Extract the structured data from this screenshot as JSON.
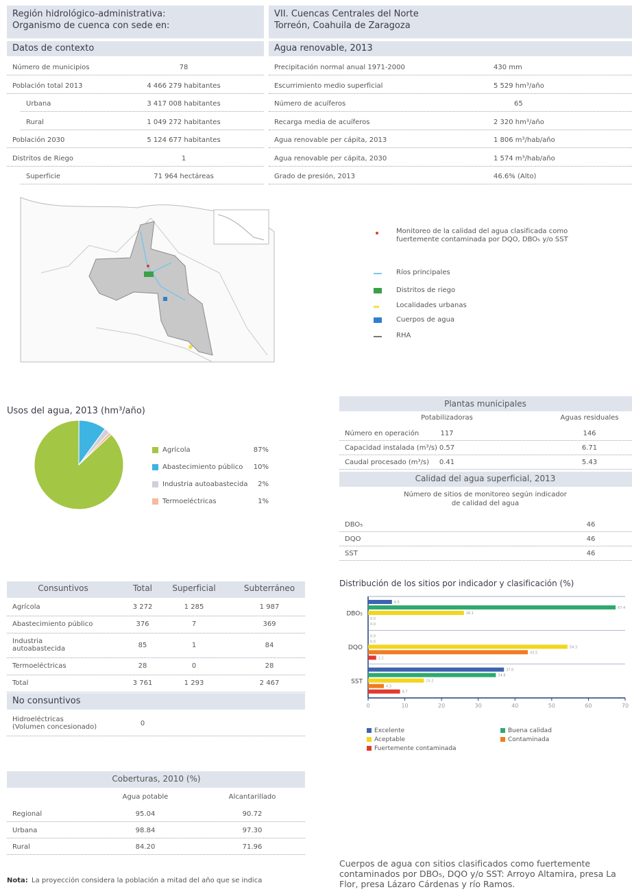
{
  "header": {
    "labels": [
      "Región hidrológico-administrativa:",
      "Organismo de cuenca con sede en:"
    ],
    "values": [
      "VII. Cuencas Centrales del Norte",
      "Torreón, Coahuila de Zaragoza"
    ]
  },
  "context": {
    "title": "Datos de contexto",
    "rows": [
      [
        "Número de municipios",
        "78"
      ],
      [
        "Población total 2013",
        "4 466 279 habitantes"
      ],
      [
        "Urbana",
        "3 417 008 habitantes"
      ],
      [
        "Rural",
        "1 049 272 habitantes"
      ],
      [
        "Población 2030",
        "5 124 677 habitantes"
      ],
      [
        "Distritos de Riego",
        "1"
      ],
      [
        "Superficie",
        "71 964 hectáreas"
      ]
    ]
  },
  "renewable": {
    "title": "Agua renovable, 2013",
    "rows": [
      [
        "Precipitación normal anual 1971-2000",
        "430 mm"
      ],
      [
        "Escurrimiento medio superficial",
        "5 529 hm³/año"
      ],
      [
        "Número de acuíferos",
        "65"
      ],
      [
        "Recarga media de acuíferos",
        "2 320 hm³/año"
      ],
      [
        "Agua renovable per cápita, 2013",
        "1 806 m³/hab/año"
      ],
      [
        "Agua renovable per cápita, 2030",
        "1 574 m³/hab/año"
      ],
      [
        "Grado de presión, 2013",
        "46.6% (Alto)"
      ]
    ]
  },
  "map_legend": [
    "Monitoreo de la calidad del agua clasificada como fuertemente contaminada por DQO, DBO₅ y/o SST",
    "Ríos principales",
    "Distritos de riego",
    "Localidades urbanas",
    "Cuerpos de agua",
    "RHA"
  ],
  "chart_data": [
    {
      "type": "pie",
      "title": "Usos del agua, 2013 (hm³/año)",
      "categories": [
        "Agrícola",
        "Abastecimiento público",
        "Industria autoabastecida",
        "Termoeléctricas"
      ],
      "values": [
        87,
        10,
        2,
        1
      ],
      "value_labels": [
        "87%",
        "10%",
        "2%",
        "1%"
      ],
      "colors": [
        "#a3c644",
        "#3db4e2",
        "#cfd0dc",
        "#f7b9a0"
      ]
    },
    {
      "type": "hbar",
      "title": "Distribución de los sitios por indicador y clasificación (%)",
      "categories": [
        "DBO₅",
        "DQO",
        "SST"
      ],
      "series": [
        {
          "name": "Excelente",
          "color": "#3e64b0",
          "values": [
            6.5,
            0,
            37.0
          ],
          "value_labels": [
            "6.5",
            "0.0",
            "37.0"
          ]
        },
        {
          "name": "Buena calidad",
          "color": "#2eaa6e",
          "values": [
            67.4,
            0,
            34.8
          ],
          "value_labels": [
            "67.4",
            "0.0",
            "34.8"
          ]
        },
        {
          "name": "Aceptable",
          "color": "#f2d51e",
          "values": [
            26.1,
            54.3,
            15.2
          ],
          "value_labels": [
            "26.1",
            "54.3",
            "15.2"
          ]
        },
        {
          "name": "Contaminada",
          "color": "#f07c22",
          "values": [
            0,
            43.5,
            4.3
          ],
          "value_labels": [
            "0.0",
            "43.5",
            "4.3"
          ]
        },
        {
          "name": "Fuertemente contaminada",
          "color": "#e03a2f",
          "values": [
            0,
            2.2,
            8.7
          ],
          "value_labels": [
            "0.0",
            "2.2",
            "8.7"
          ]
        }
      ],
      "xlim": [
        0,
        70
      ],
      "xticks": [
        0,
        10,
        20,
        30,
        40,
        50,
        60,
        70
      ]
    }
  ],
  "plants": {
    "title": "Plantas municipales",
    "columns": [
      "Potabilizadoras",
      "Aguas residuales"
    ],
    "rows": [
      [
        "Número en operación",
        "117",
        "146"
      ],
      [
        "Capacidad instalada (m³/s)",
        "0.57",
        "6.71"
      ],
      [
        "Caudal procesado (m³/s)",
        "0.41",
        "5.43"
      ]
    ]
  },
  "quality": {
    "title": "Calidad del agua superficial, 2013",
    "subtitle": [
      "Número de sitios de monitoreo según indicador",
      "de calidad del agua"
    ],
    "rows": [
      [
        "DBO₅",
        "46"
      ],
      [
        "DQO",
        "46"
      ],
      [
        "SST",
        "46"
      ]
    ]
  },
  "uses": {
    "columns": [
      "Consuntivos",
      "Total",
      "Superficial",
      "Subterráneo"
    ],
    "rows": [
      [
        [
          "Agrícola"
        ],
        "3 272",
        "1 285",
        "1 987"
      ],
      [
        [
          "Abastecimiento público"
        ],
        "376",
        "7",
        "369"
      ],
      [
        [
          "Industria",
          "autoabastecida"
        ],
        "85",
        "1",
        "84"
      ],
      [
        [
          "Termoeléctricas"
        ],
        "28",
        "0",
        "28"
      ],
      [
        [
          "Total"
        ],
        "3 761",
        "1 293",
        "2 467"
      ]
    ],
    "non_consumptive_title": "No consuntivos",
    "non_consumptive_rows": [
      [
        [
          "Hidroeléctricas",
          "(Volumen concesionado)"
        ],
        "0"
      ]
    ]
  },
  "coverage": {
    "title": "Coberturas, 2010 (%)",
    "columns": [
      "Agua potable",
      "Alcantarillado"
    ],
    "rows": [
      [
        "Regional",
        "95.04",
        "90.72"
      ],
      [
        "Urbana",
        "98.84",
        "97.30"
      ],
      [
        "Rural",
        "84.20",
        "71.96"
      ]
    ]
  },
  "note": {
    "label": "Nota:",
    "text": "La proyección considera la población a mitad del año que se indica"
  },
  "footer_text": "Cuerpos de agua con sitios clasificados como fuertemente contaminados por DBO₅, DQO y/o SST: Arroyo Altamira, presa La Flor, presa Lázaro Cárdenas y río Ramos."
}
